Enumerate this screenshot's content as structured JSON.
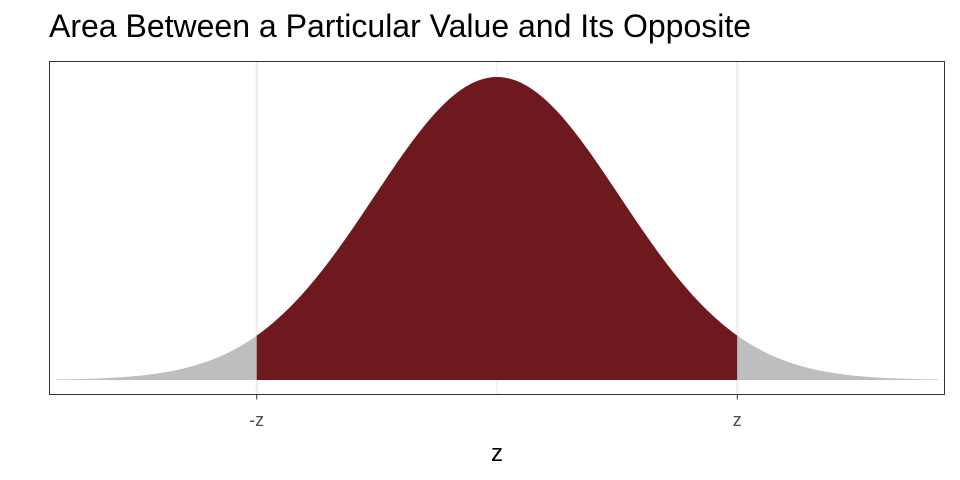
{
  "chart_data": {
    "type": "area",
    "title": "Area Between a Particular Value and Its Opposite",
    "xlabel": "z",
    "ylabel": "",
    "xlim": [
      -3.65,
      3.65
    ],
    "curve_domain": [
      -3.6,
      3.6
    ],
    "ylim": [
      0,
      0.415
    ],
    "critical_value": 1.96,
    "tick_values": [
      -1.96,
      1.96
    ],
    "tick_labels": [
      "-z",
      "z"
    ],
    "regions": [
      {
        "from": -3.6,
        "to": -1.96,
        "role": "tail"
      },
      {
        "from": -1.96,
        "to": 1.96,
        "role": "between"
      },
      {
        "from": 1.96,
        "to": 3.6,
        "role": "tail"
      }
    ],
    "colors": {
      "between": "#6e191d",
      "tail": "#bebebe",
      "grid": "#ebebeb",
      "panel_border": "#333333"
    },
    "grid": true,
    "legend": "none"
  }
}
